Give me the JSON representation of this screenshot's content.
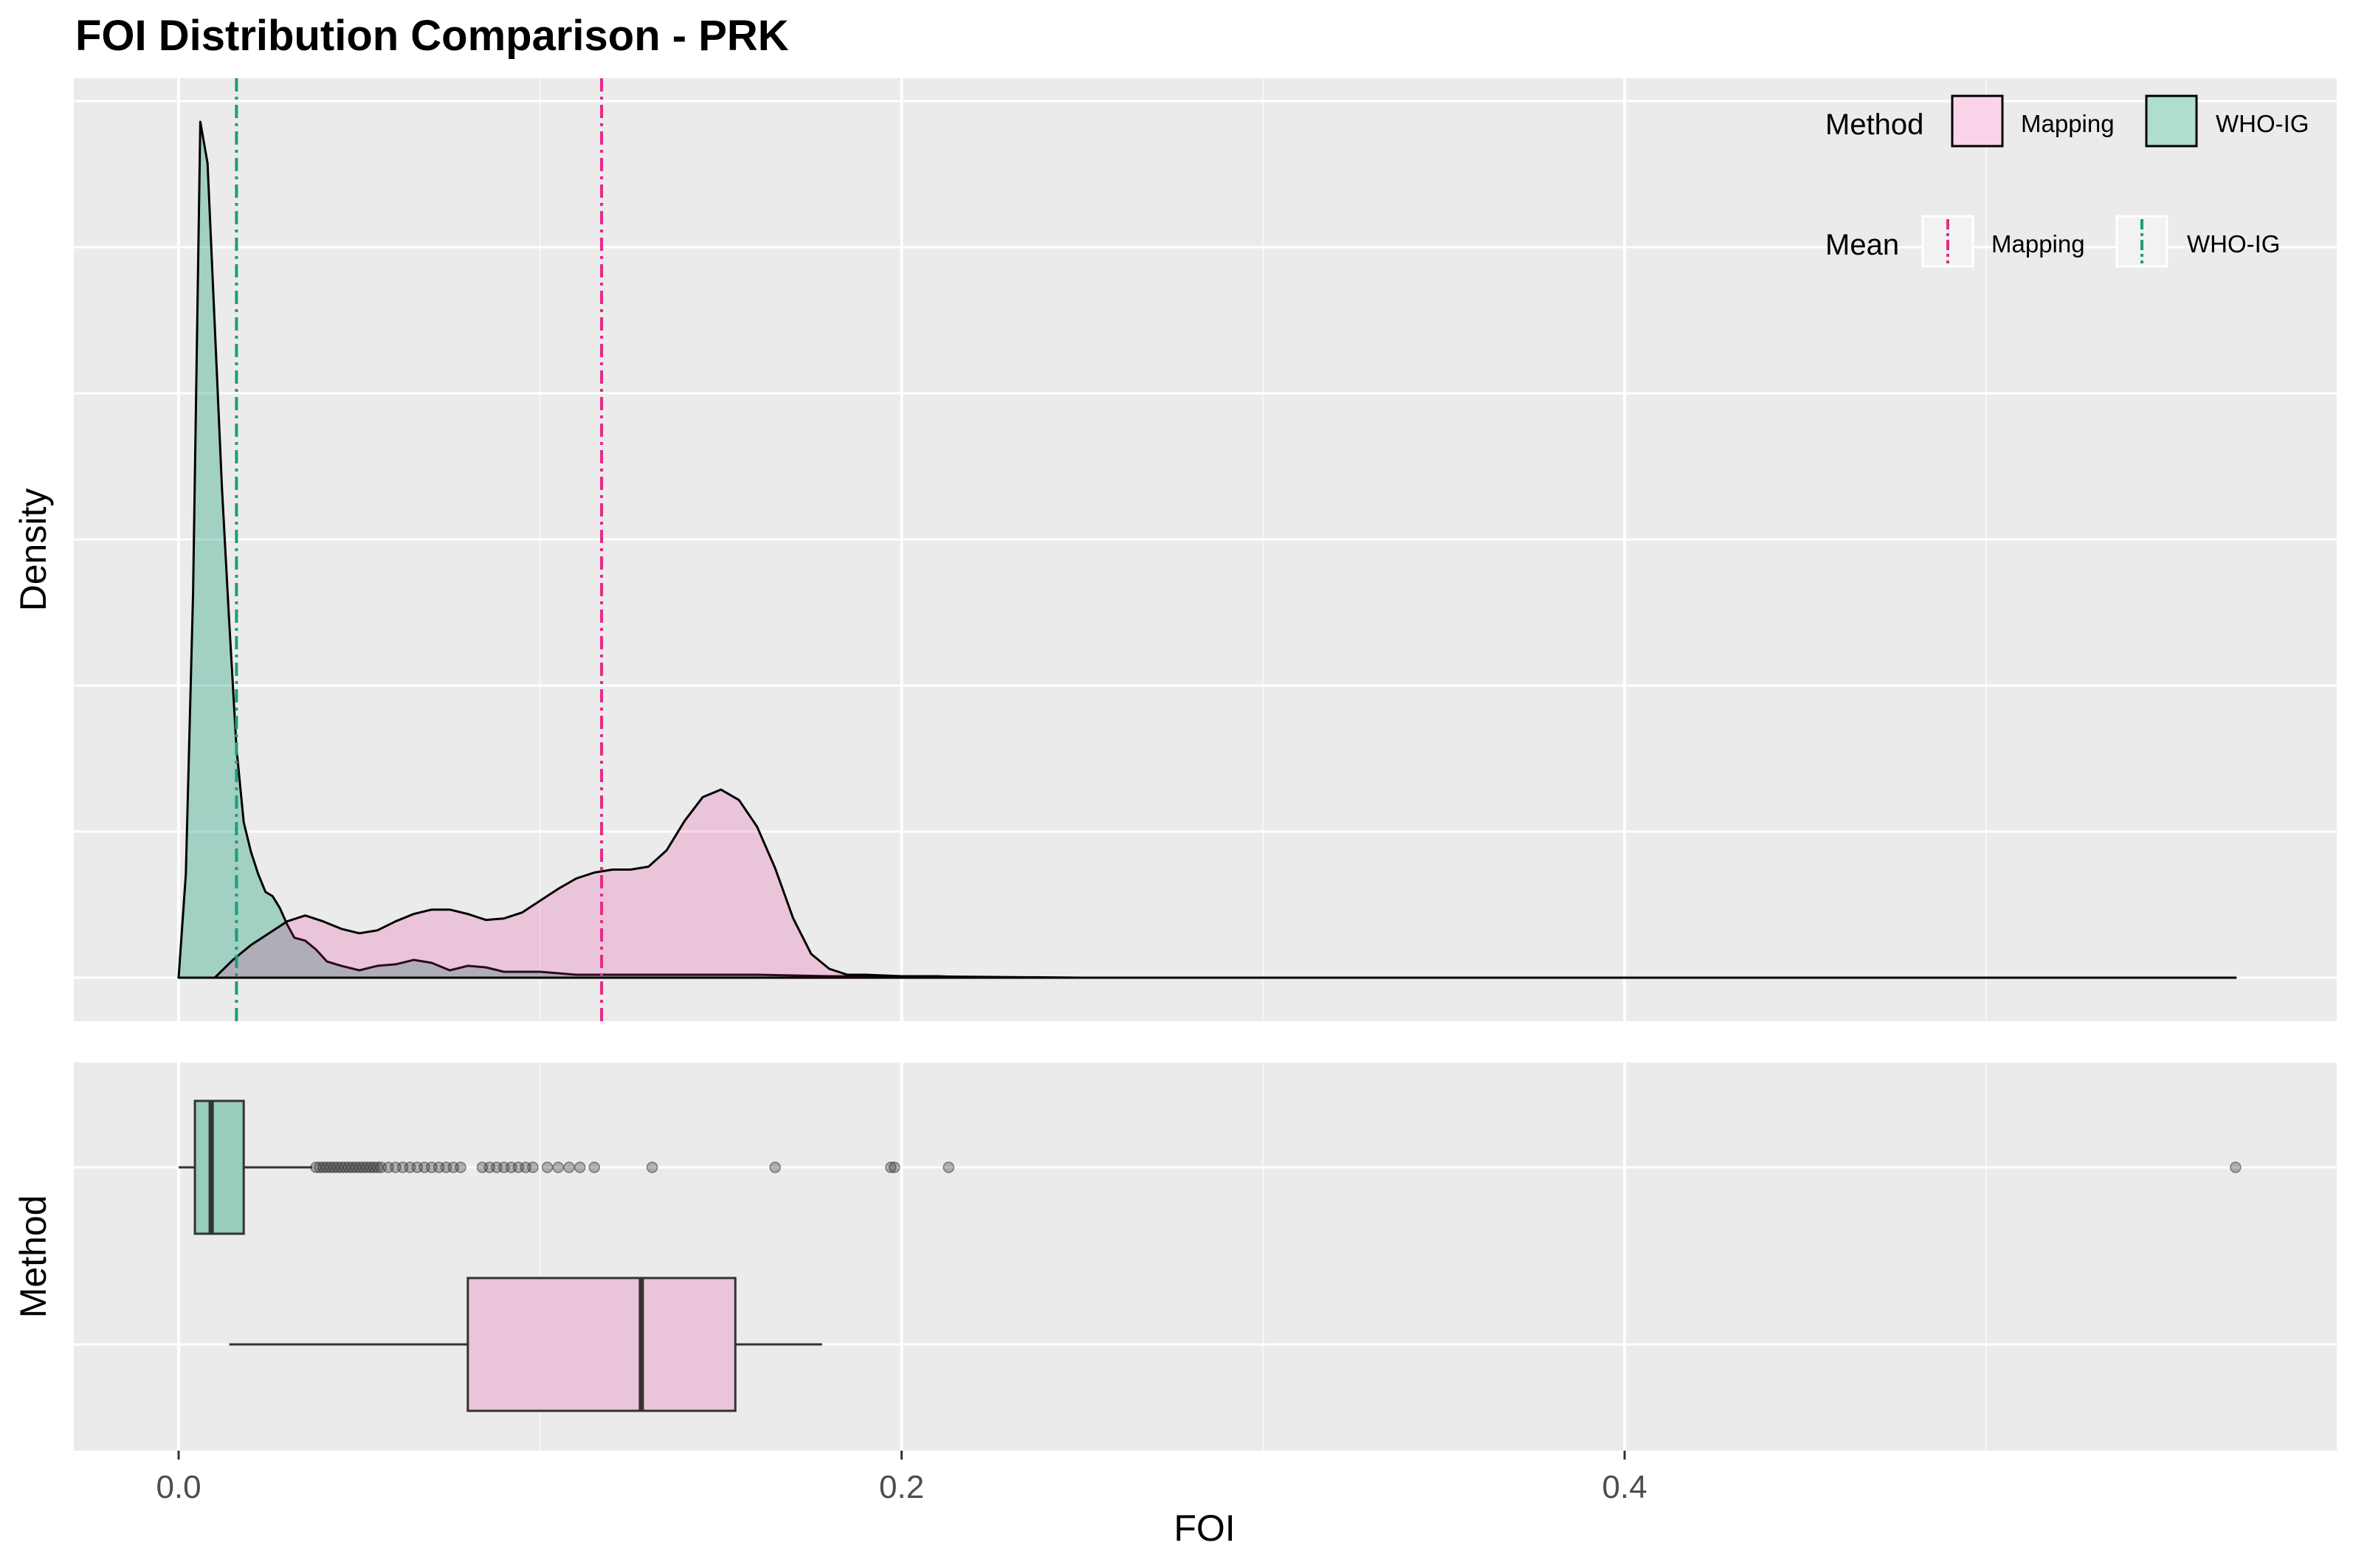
{
  "chart_data": [
    {
      "type": "area",
      "title": "FOI Distribution Comparison - PRK",
      "xlabel": "",
      "ylabel": "Density",
      "xlim": [
        -0.029,
        0.597
      ],
      "y_ticks_shown": false,
      "grid": true,
      "series": [
        {
          "name": "WHO-IG",
          "color": "#1b9e77",
          "fill_opacity": 0.35,
          "x": [
            0.0,
            0.002,
            0.004,
            0.006,
            0.008,
            0.01,
            0.012,
            0.014,
            0.016,
            0.018,
            0.02,
            0.022,
            0.024,
            0.026,
            0.028,
            0.03,
            0.032,
            0.035,
            0.038,
            0.041,
            0.045,
            0.05,
            0.055,
            0.06,
            0.065,
            0.07,
            0.075,
            0.08,
            0.085,
            0.09,
            0.095,
            0.1,
            0.11,
            0.12,
            0.14,
            0.16,
            0.18,
            0.2,
            0.25,
            0.4,
            0.569
          ],
          "y": [
            0.0,
            0.7,
            2.6,
            5.78,
            5.5,
            4.4,
            3.3,
            2.4,
            1.55,
            1.05,
            0.85,
            0.7,
            0.58,
            0.55,
            0.47,
            0.36,
            0.27,
            0.25,
            0.19,
            0.11,
            0.08,
            0.05,
            0.08,
            0.09,
            0.12,
            0.1,
            0.05,
            0.08,
            0.07,
            0.04,
            0.04,
            0.04,
            0.02,
            0.02,
            0.02,
            0.02,
            0.01,
            0.01,
            0.0,
            0.0,
            0.0
          ]
        },
        {
          "name": "Mapping",
          "color": "#e7298a",
          "fill_opacity": 0.2,
          "x": [
            0.0,
            0.01,
            0.015,
            0.02,
            0.025,
            0.03,
            0.035,
            0.04,
            0.045,
            0.05,
            0.055,
            0.06,
            0.065,
            0.07,
            0.075,
            0.08,
            0.085,
            0.09,
            0.095,
            0.1,
            0.105,
            0.11,
            0.115,
            0.12,
            0.125,
            0.13,
            0.135,
            0.14,
            0.145,
            0.15,
            0.155,
            0.16,
            0.165,
            0.17,
            0.175,
            0.18,
            0.185,
            0.19,
            0.2,
            0.21,
            0.22,
            0.3,
            0.569
          ],
          "y": [
            0.0,
            0.0,
            0.12,
            0.22,
            0.3,
            0.38,
            0.42,
            0.38,
            0.33,
            0.3,
            0.32,
            0.38,
            0.43,
            0.46,
            0.46,
            0.43,
            0.39,
            0.4,
            0.44,
            0.52,
            0.6,
            0.67,
            0.71,
            0.73,
            0.73,
            0.75,
            0.86,
            1.06,
            1.22,
            1.27,
            1.2,
            1.02,
            0.74,
            0.4,
            0.16,
            0.06,
            0.02,
            0.02,
            0.01,
            0.01,
            0.0,
            0.0,
            0.0
          ]
        }
      ],
      "reference_lines": [
        {
          "name": "Mapping",
          "x": 0.117,
          "color": "#e7298a",
          "dash": "dot-dash"
        },
        {
          "name": "WHO-IG",
          "x": 0.016,
          "color": "#1b9e77",
          "dash": "dot-dash"
        }
      ],
      "legend": [
        {
          "title": "Method",
          "entries": [
            {
              "label": "Mapping",
              "fill": "#e7298a"
            },
            {
              "label": "WHO-IG",
              "fill": "#1b9e77"
            }
          ]
        },
        {
          "title": "Mean",
          "entries": [
            {
              "label": "Mapping",
              "line": "#e7298a"
            },
            {
              "label": "WHO-IG",
              "line": "#1b9e77"
            }
          ]
        }
      ],
      "legend_position": "top-right"
    },
    {
      "type": "box",
      "xlabel": "FOI",
      "ylabel": "Method",
      "xlim": [
        -0.029,
        0.597
      ],
      "x_ticks": [
        0.0,
        0.2,
        0.4
      ],
      "x_tick_labels": [
        "0.0",
        "0.2",
        "0.4"
      ],
      "grid": true,
      "boxes": [
        {
          "name": "WHO-IG",
          "color": "#1b9e77",
          "whisker_low": 0.0,
          "q1": 0.0045,
          "median": 0.009,
          "q3": 0.018,
          "whisker_high": 0.037,
          "outliers": [
            0.038,
            0.039,
            0.04,
            0.041,
            0.042,
            0.043,
            0.044,
            0.045,
            0.046,
            0.047,
            0.048,
            0.049,
            0.05,
            0.051,
            0.052,
            0.053,
            0.054,
            0.055,
            0.056,
            0.058,
            0.06,
            0.062,
            0.064,
            0.066,
            0.068,
            0.07,
            0.072,
            0.074,
            0.076,
            0.078,
            0.084,
            0.086,
            0.088,
            0.09,
            0.092,
            0.094,
            0.096,
            0.098,
            0.102,
            0.105,
            0.108,
            0.111,
            0.115,
            0.131,
            0.165,
            0.197,
            0.198,
            0.213,
            0.569
          ]
        },
        {
          "name": "Mapping",
          "color": "#e7298a",
          "whisker_low": 0.014,
          "q1": 0.08,
          "median": 0.128,
          "q3": 0.154,
          "whisker_high": 0.178,
          "outliers": []
        }
      ]
    }
  ]
}
